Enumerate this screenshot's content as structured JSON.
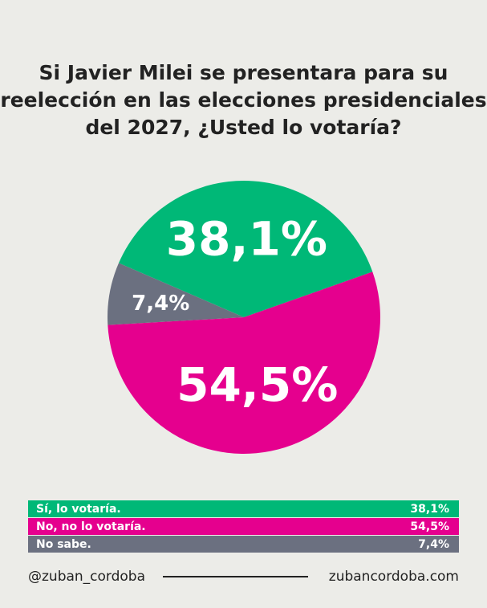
{
  "chart_data": {
    "type": "pie",
    "title": "Si Javier Milei se presentara para  su reelección en las elecciones presidenciales del 2027, ¿Usted lo votaría?",
    "slices": [
      {
        "name": "Sí, lo votaría.",
        "value": 38.1,
        "label": "38,1%",
        "color": "#00b877"
      },
      {
        "name": "No, no lo votaría.",
        "value": 54.5,
        "label": "54,5%",
        "color": "#e5008e"
      },
      {
        "name": "No sabe.",
        "value": 7.4,
        "label": "7,4%",
        "color": "#6b7080"
      }
    ],
    "legend": "bottom"
  },
  "footer": {
    "handle": "@zuban_cordoba",
    "site": "zubancordoba.com"
  }
}
